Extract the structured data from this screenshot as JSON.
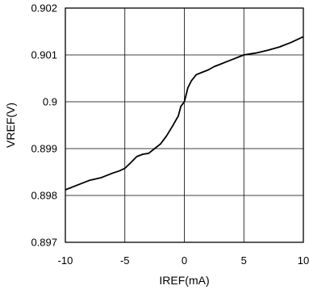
{
  "chart_data": {
    "type": "line",
    "xlabel": "IREF(mA)",
    "ylabel": "VREF(V)",
    "xlim": [
      -10,
      10
    ],
    "ylim": [
      0.897,
      0.902
    ],
    "xticks": [
      "-10",
      "-5",
      "0",
      "5",
      "10"
    ],
    "yticks": [
      "0.897",
      "0.898",
      "0.899",
      "0.9",
      "0.901",
      "0.902"
    ],
    "grid": true,
    "series": [
      {
        "x": [
          -10,
          -9,
          -8,
          -7,
          -6,
          -5.5,
          -5,
          -4.5,
          -4,
          -3.5,
          -3,
          -2.5,
          -2,
          -1.5,
          -1,
          -0.5,
          -0.3,
          0,
          0.3,
          0.6,
          1,
          1.5,
          2,
          2.5,
          3,
          3.5,
          4,
          4.5,
          5,
          5.5,
          6,
          7,
          8,
          9,
          10
        ],
        "y": [
          0.89812,
          0.89822,
          0.89832,
          0.89838,
          0.89848,
          0.89852,
          0.89858,
          0.8987,
          0.89883,
          0.89888,
          0.8989,
          0.899,
          0.8991,
          0.89927,
          0.89948,
          0.8997,
          0.8999,
          0.9,
          0.9003,
          0.90045,
          0.90058,
          0.90063,
          0.90068,
          0.90075,
          0.9008,
          0.90085,
          0.9009,
          0.90095,
          0.901,
          0.90102,
          0.90104,
          0.9011,
          0.90117,
          0.90127,
          0.90139
        ]
      }
    ]
  }
}
